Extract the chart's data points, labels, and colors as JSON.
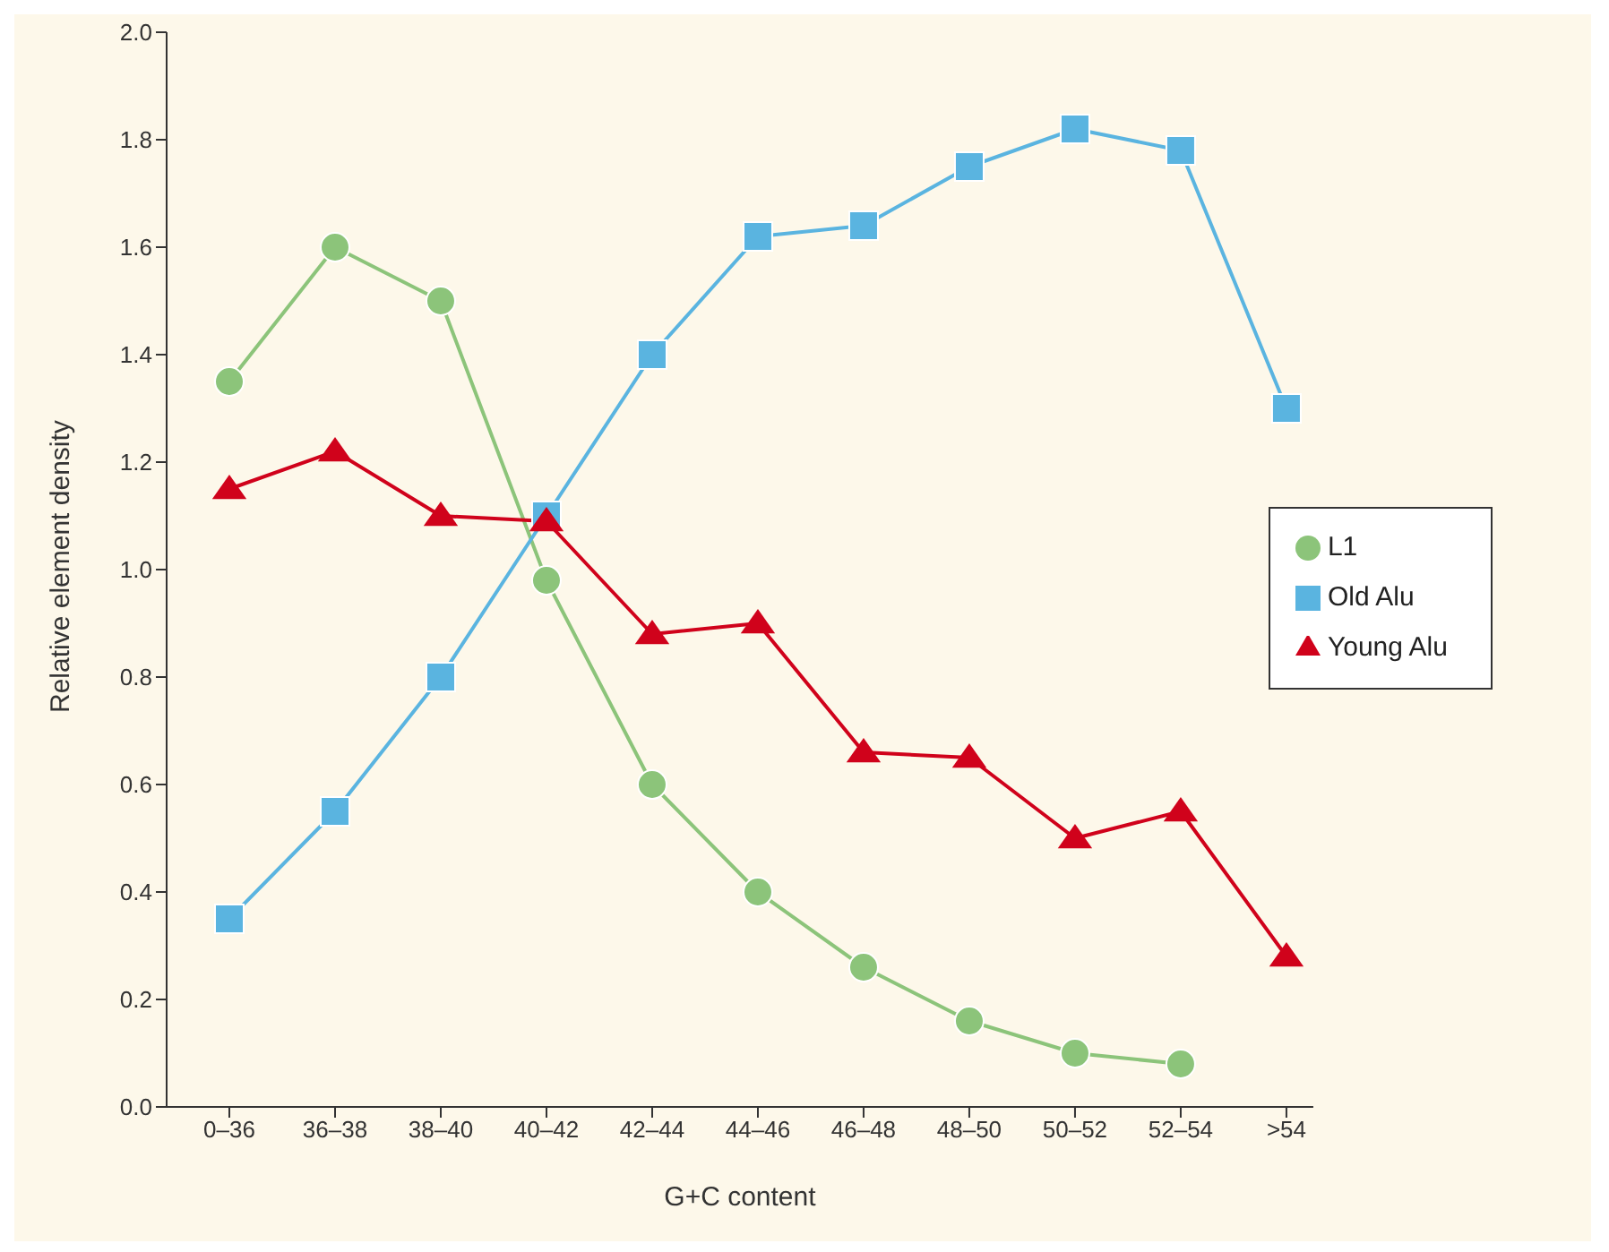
{
  "chart_data": {
    "type": "line",
    "xlabel": "G+C content",
    "ylabel": "Relative element density",
    "categories": [
      "0–36",
      "36–38",
      "38–40",
      "40–42",
      "42–44",
      "44–46",
      "46–48",
      "48–50",
      "50–52",
      "52–54",
      ">54"
    ],
    "series": [
      {
        "name": "L1",
        "color": "#8cc47a",
        "marker": "circle",
        "values": [
          1.35,
          1.6,
          1.5,
          0.98,
          0.6,
          0.4,
          0.26,
          0.16,
          0.1,
          0.08,
          null
        ]
      },
      {
        "name": "Old Alu",
        "color": "#5ab4e0",
        "marker": "square",
        "values": [
          0.35,
          0.55,
          0.8,
          1.1,
          1.4,
          1.62,
          1.64,
          1.75,
          1.82,
          1.78,
          1.3
        ]
      },
      {
        "name": "Young Alu",
        "color": "#d0021b",
        "marker": "triangle",
        "values": [
          1.15,
          1.22,
          1.1,
          1.09,
          0.88,
          0.9,
          0.66,
          0.65,
          0.5,
          0.55,
          0.28
        ]
      }
    ],
    "ylim": [
      0,
      2
    ],
    "yticks": [
      {
        "value": 0,
        "label": "0.0"
      },
      0.2,
      0.4,
      0.6,
      0.8,
      {
        "value": 1,
        "label": "1.0"
      },
      1.2,
      1.4,
      1.6,
      1.8,
      {
        "value": 2,
        "label": "2.0"
      }
    ],
    "legend": "right"
  }
}
